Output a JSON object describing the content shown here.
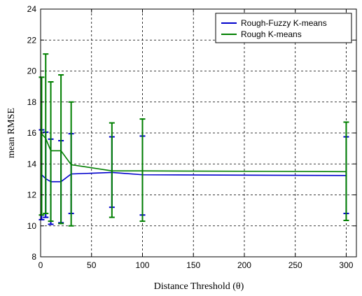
{
  "chart_data": {
    "type": "line",
    "xlabel": "Distance Threshold (θ)",
    "ylabel": "mean RMSE",
    "xlim": [
      0,
      310
    ],
    "ylim": [
      8,
      24
    ],
    "xticks": [
      0,
      50,
      100,
      150,
      200,
      250,
      300
    ],
    "yticks": [
      8,
      10,
      12,
      14,
      16,
      18,
      20,
      22,
      24
    ],
    "grid": true,
    "grid_style": "dashed",
    "legend_position": "top-right",
    "series": [
      {
        "name": "Rough-Fuzzy K-means",
        "color": "#0000cc",
        "x": [
          1,
          5,
          10,
          20,
          30,
          70,
          100,
          300
        ],
        "y": [
          13.3,
          13.05,
          12.85,
          12.85,
          13.35,
          13.45,
          13.3,
          13.25
        ],
        "err_low": [
          10.4,
          10.55,
          10.1,
          10.2,
          10.8,
          11.2,
          10.7,
          10.8
        ],
        "err_high": [
          16.2,
          16.05,
          15.6,
          15.5,
          15.95,
          15.75,
          15.8,
          15.75
        ]
      },
      {
        "name": "Rough K-means",
        "color": "#007f00",
        "x": [
          1,
          5,
          10,
          20,
          30,
          70,
          100,
          300
        ],
        "y": [
          15.95,
          15.65,
          14.85,
          14.85,
          13.95,
          13.55,
          13.55,
          13.5
        ],
        "err_low": [
          10.7,
          10.8,
          10.3,
          10.15,
          10.0,
          10.55,
          10.3,
          10.35
        ],
        "err_high": [
          19.6,
          21.1,
          19.3,
          19.75,
          18.0,
          16.65,
          16.9,
          16.7
        ]
      }
    ]
  }
}
